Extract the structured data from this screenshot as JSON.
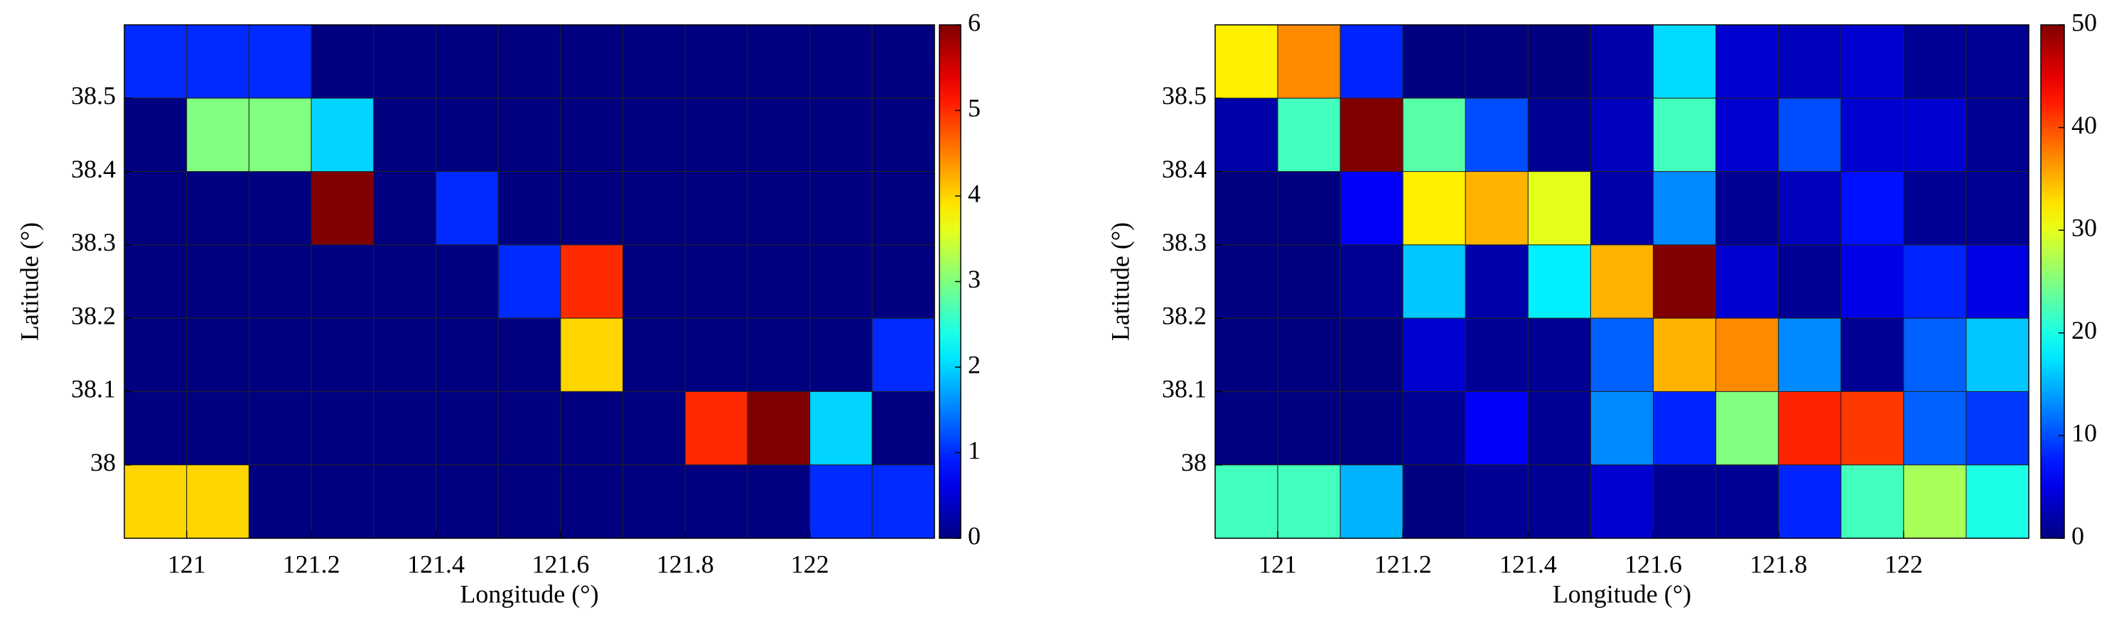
{
  "chart_data": [
    {
      "type": "heatmap",
      "xlabel": "Longitude (°)",
      "ylabel": "Latitude (°)",
      "colormap": "jet",
      "xlim": [
        120.9,
        122.2
      ],
      "ylim": [
        37.9,
        38.6
      ],
      "xticks": [
        121,
        121.2,
        121.4,
        121.6,
        121.8,
        122
      ],
      "yticks": [
        38,
        38.1,
        38.2,
        38.3,
        38.4,
        38.5
      ],
      "clim": [
        0,
        6
      ],
      "cticks": [
        0,
        1,
        2,
        3,
        4,
        5,
        6
      ],
      "z": [
        [
          1,
          1,
          1,
          0,
          0,
          0,
          0,
          0,
          0,
          0,
          0,
          0,
          0
        ],
        [
          0,
          3,
          3,
          2,
          0,
          0,
          0,
          0,
          0,
          0,
          0,
          0,
          0
        ],
        [
          0,
          0,
          0,
          6,
          0,
          1,
          0,
          0,
          0,
          0,
          0,
          0,
          0
        ],
        [
          0,
          0,
          0,
          0,
          0,
          0,
          1,
          5,
          0,
          0,
          0,
          0,
          0
        ],
        [
          0,
          0,
          0,
          0,
          0,
          0,
          0,
          4,
          0,
          0,
          0,
          0,
          1
        ],
        [
          0,
          0,
          0,
          0,
          0,
          0,
          0,
          0,
          0,
          5,
          6,
          2,
          0
        ],
        [
          4,
          4,
          0,
          0,
          0,
          0,
          0,
          0,
          0,
          0,
          0,
          1,
          1
        ]
      ]
    },
    {
      "type": "heatmap",
      "xlabel": "Longitude (°)",
      "ylabel": "Latitude (°)",
      "colormap": "jet",
      "xlim": [
        120.9,
        122.2
      ],
      "ylim": [
        37.9,
        38.6
      ],
      "xticks": [
        121,
        121.2,
        121.4,
        121.6,
        121.8,
        122
      ],
      "yticks": [
        38,
        38.1,
        38.2,
        38.3,
        38.4,
        38.5
      ],
      "clim": [
        0,
        50
      ],
      "cticks": [
        0,
        10,
        20,
        30,
        40,
        50
      ],
      "z": [
        [
          32,
          37,
          8,
          0,
          0,
          0,
          2,
          17,
          4,
          3,
          4,
          1,
          1
        ],
        [
          2,
          22,
          50,
          23,
          10,
          1,
          3,
          22,
          4,
          10,
          4,
          4,
          1
        ],
        [
          0,
          0,
          6,
          32,
          35,
          30,
          2,
          13,
          1,
          3,
          7,
          1,
          1
        ],
        [
          0,
          0,
          1,
          16,
          2,
          18,
          35,
          50,
          4,
          1,
          5,
          8,
          5
        ],
        [
          0,
          0,
          0,
          4,
          1,
          1,
          11,
          35,
          37,
          13,
          1,
          11,
          16
        ],
        [
          0,
          0,
          0,
          1,
          6,
          1,
          13,
          8,
          25,
          42,
          41,
          11,
          9
        ],
        [
          22,
          22,
          15,
          0,
          1,
          1,
          4,
          1,
          1,
          8,
          22,
          27,
          20
        ]
      ]
    }
  ]
}
